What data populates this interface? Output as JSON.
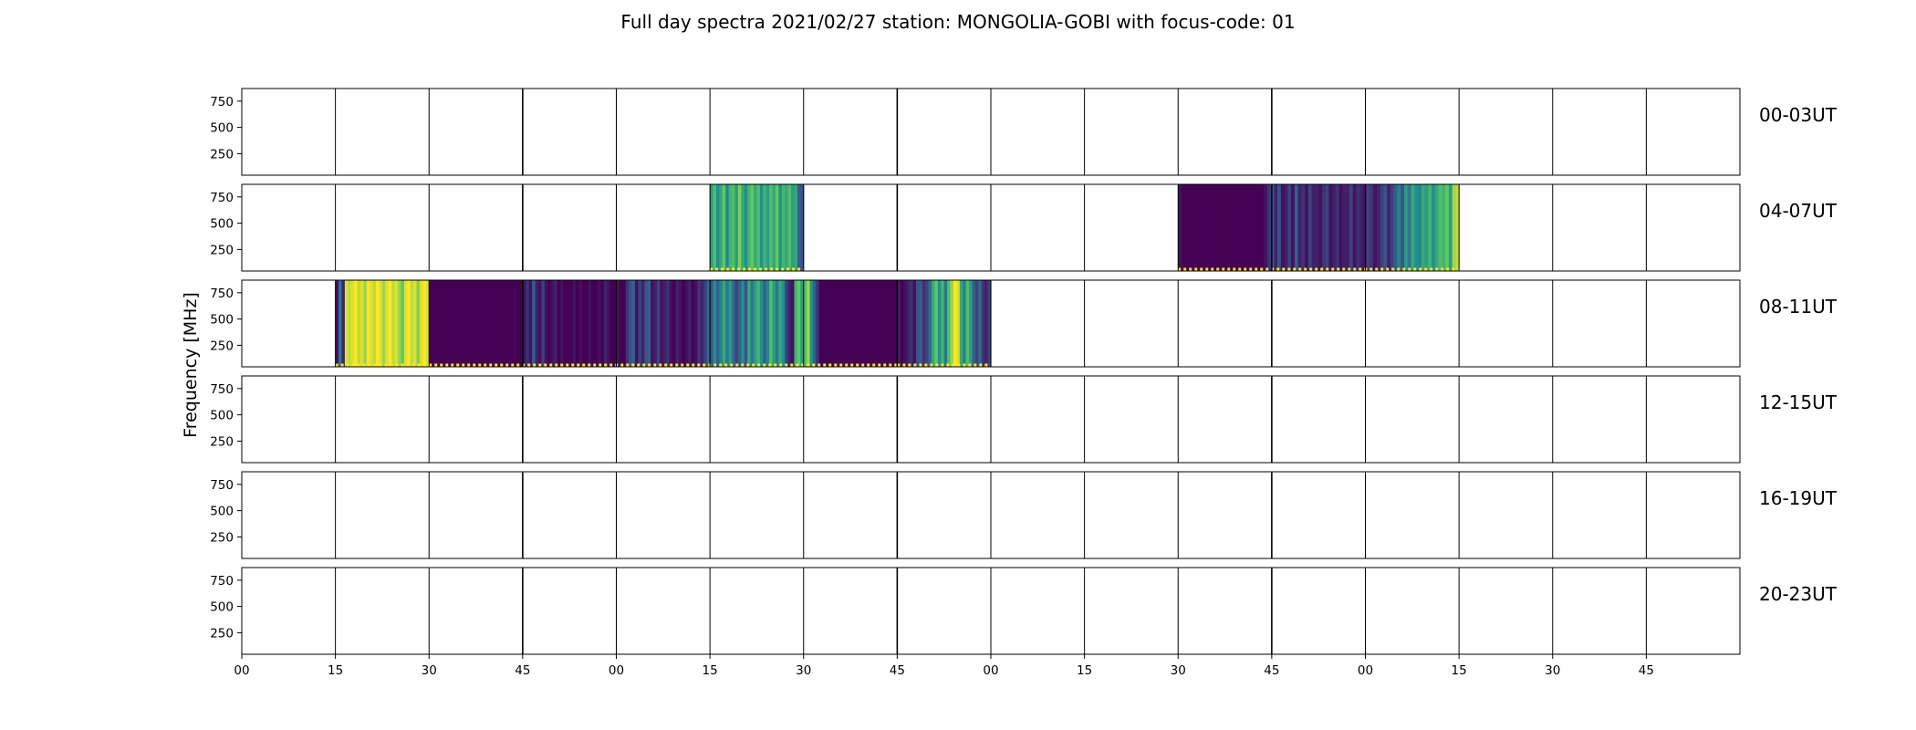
{
  "chart_data": {
    "type": "heatmap",
    "title": "Full day spectra 2021/02/27 station: MONGOLIA-GOBI with focus-code: 01",
    "xlabel": "",
    "ylabel": "Frequency [MHz]",
    "x_tick_labels": [
      "00",
      "15",
      "30",
      "45",
      "00",
      "15",
      "30",
      "45",
      "00",
      "15",
      "30",
      "45",
      "00",
      "15",
      "30",
      "45"
    ],
    "y_ticks": [
      250,
      500,
      750
    ],
    "y_tick_labels": [
      "250",
      "500",
      "750"
    ],
    "ylim": [
      45,
      870
    ],
    "x_range_minutes_per_row": [
      0,
      240
    ],
    "grid": false,
    "colormap": [
      "#440154",
      "#3b528b",
      "#21918c",
      "#5ec962",
      "#fde725"
    ],
    "rows": [
      {
        "label": "00-03UT",
        "observations": []
      },
      {
        "label": "04-07UT",
        "observations": [
          {
            "start_min": 75,
            "end_min": 90,
            "intensity": [
              0.55,
              0.7,
              0.5,
              0.6,
              0.75,
              0.45,
              0.65,
              0.7,
              0.55,
              0.8,
              0.6,
              0.5,
              0.65,
              0.75,
              0.6,
              0.7,
              0.5,
              0.65,
              0.55,
              0.7,
              0.6,
              0.75,
              0.5,
              0.65,
              0.6,
              0.7,
              0.55,
              0.6,
              0.3,
              0.25
            ]
          },
          {
            "start_min": 150,
            "end_min": 195,
            "intensity": [
              0.05,
              0.0,
              0.0,
              0.0,
              0.0,
              0.0,
              0.0,
              0.0,
              0.0,
              0.0,
              0.0,
              0.0,
              0.0,
              0.0,
              0.0,
              0.0,
              0.0,
              0.0,
              0.0,
              0.0,
              0.0,
              0.0,
              0.0,
              0.0,
              0.0,
              0.05,
              0.15,
              0.3,
              0.1,
              0.25,
              0.05,
              0.1,
              0.2,
              0.05,
              0.3,
              0.1,
              0.15,
              0.05,
              0.2,
              0.1,
              0.1,
              0.05,
              0.15,
              0.2,
              0.05,
              0.1,
              0.15,
              0.05,
              0.1,
              0.1,
              0.2,
              0.05,
              0.15,
              0.1,
              0.05,
              0.2,
              0.15,
              0.05,
              0.1,
              0.2,
              0.25,
              0.1,
              0.2,
              0.3,
              0.45,
              0.25,
              0.55,
              0.4,
              0.6,
              0.5,
              0.45,
              0.6,
              0.55,
              0.65,
              0.5,
              0.6,
              0.7,
              0.65,
              0.75,
              0.55,
              0.85,
              0.9
            ]
          }
        ]
      },
      {
        "label": "08-11UT",
        "observations": [
          {
            "start_min": 15,
            "end_min": 30,
            "intensity": [
              0.05,
              0.4,
              0.1,
              0.95,
              0.9,
              0.95,
              1.0,
              0.9,
              0.95,
              0.85,
              1.0,
              0.95,
              0.9,
              1.0,
              0.95,
              0.85,
              0.95,
              1.0,
              0.9,
              0.95,
              0.85,
              0.75,
              0.95,
              1.0,
              0.9,
              0.95,
              0.8,
              0.95,
              1.0,
              0.95
            ]
          },
          {
            "start_min": 30,
            "end_min": 105,
            "intensity": [
              0.0,
              0.0,
              0.0,
              0.0,
              0.0,
              0.0,
              0.0,
              0.0,
              0.0,
              0.0,
              0.0,
              0.0,
              0.0,
              0.0,
              0.0,
              0.0,
              0.0,
              0.0,
              0.0,
              0.0,
              0.0,
              0.0,
              0.0,
              0.0,
              0.0,
              0.0,
              0.0,
              0.0,
              0.0,
              0.0,
              0.05,
              0.15,
              0.05,
              0.3,
              0.1,
              0.05,
              0.2,
              0.05,
              0.0,
              0.05,
              0.1,
              0.0,
              0.05,
              0.0,
              0.0,
              0.0,
              0.05,
              0.0,
              0.05,
              0.0,
              0.0,
              0.05,
              0.0,
              0.0,
              0.05,
              0.0,
              0.1,
              0.05,
              0.0,
              0.0,
              0.05,
              0.0,
              0.0,
              0.15,
              0.25,
              0.3,
              0.05,
              0.2,
              0.1,
              0.25,
              0.3,
              0.05,
              0.1,
              0.2,
              0.05,
              0.1,
              0.15,
              0.05,
              0.0,
              0.1,
              0.05,
              0.0,
              0.05,
              0.1,
              0.0,
              0.05,
              0.15,
              0.1,
              0.2,
              0.35,
              0.25,
              0.5,
              0.3,
              0.45,
              0.6,
              0.4,
              0.55,
              0.35,
              0.2,
              0.3,
              0.5,
              0.25,
              0.6,
              0.4,
              0.55,
              0.65,
              0.5,
              0.3,
              0.45,
              0.7,
              0.55,
              0.4,
              0.6,
              0.5,
              0.2,
              0.1,
              0.05,
              0.65,
              0.75,
              0.55,
              0.7,
              0.85,
              0.5,
              0.3,
              0.15,
              0.0,
              0.0,
              0.0,
              0.0,
              0.0,
              0.0,
              0.0,
              0.0,
              0.0,
              0.0,
              0.0,
              0.0,
              0.0,
              0.0,
              0.0,
              0.0,
              0.0,
              0.0,
              0.0,
              0.0,
              0.0,
              0.0,
              0.0,
              0.0,
              0.0
            ]
          },
          {
            "start_min": 105,
            "end_min": 120,
            "intensity": [
              0.1,
              0.0,
              0.05,
              0.1,
              0.15,
              0.05,
              0.25,
              0.3,
              0.15,
              0.2,
              0.35,
              0.6,
              0.75,
              0.5,
              0.65,
              0.4,
              0.7,
              0.85,
              1.0,
              0.95,
              0.6,
              0.45,
              0.7,
              0.55,
              0.3,
              0.2,
              0.35,
              0.15,
              0.1,
              0.2
            ]
          }
        ]
      },
      {
        "label": "12-15UT",
        "observations": []
      },
      {
        "label": "16-19UT",
        "observations": []
      },
      {
        "label": "20-23UT",
        "observations": []
      }
    ]
  }
}
